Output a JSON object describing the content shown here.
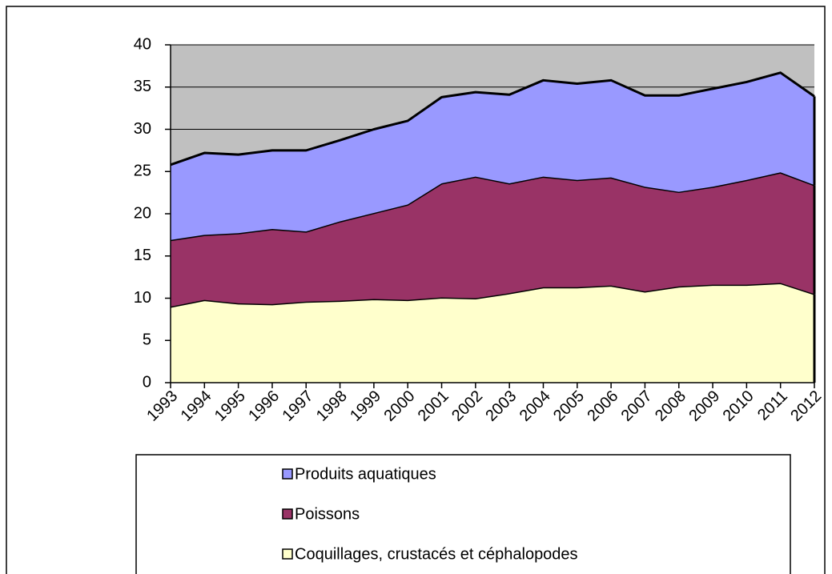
{
  "chart_data": {
    "type": "stacked_area",
    "categories": [
      "1993",
      "1994",
      "1995",
      "1996",
      "1997",
      "1998",
      "1999",
      "2000",
      "2001",
      "2002",
      "2003",
      "2004",
      "2005",
      "2006",
      "2007",
      "2008",
      "2009",
      "2010",
      "2011",
      "2012"
    ],
    "series": [
      {
        "name": "Coquillages, crustacés et céphalopodes",
        "color": "#ffffcc",
        "values": [
          9.0,
          9.8,
          9.4,
          9.3,
          9.6,
          9.7,
          9.9,
          9.8,
          10.1,
          10.0,
          10.6,
          11.3,
          11.3,
          11.5,
          10.8,
          11.4,
          11.6,
          11.6,
          11.8,
          10.5
        ]
      },
      {
        "name": "Poissons",
        "color": "#993366",
        "values": [
          7.9,
          7.7,
          8.3,
          8.9,
          8.3,
          9.4,
          10.2,
          11.3,
          13.5,
          14.4,
          13.0,
          13.1,
          12.7,
          12.8,
          12.4,
          11.2,
          11.6,
          12.4,
          13.1,
          12.9
        ]
      },
      {
        "name": "Produits aquatiques",
        "color": "#9999ff",
        "values": [
          8.9,
          9.7,
          9.3,
          9.3,
          9.6,
          9.6,
          9.9,
          9.9,
          10.2,
          10.0,
          10.5,
          11.4,
          11.4,
          11.5,
          10.8,
          11.4,
          11.6,
          11.6,
          11.8,
          10.5
        ]
      }
    ],
    "ylim": [
      0,
      40
    ],
    "yticks": [
      0,
      5,
      10,
      15,
      20,
      25,
      30,
      35,
      40
    ],
    "grid": true,
    "plot_background": "#c0c0c0"
  }
}
